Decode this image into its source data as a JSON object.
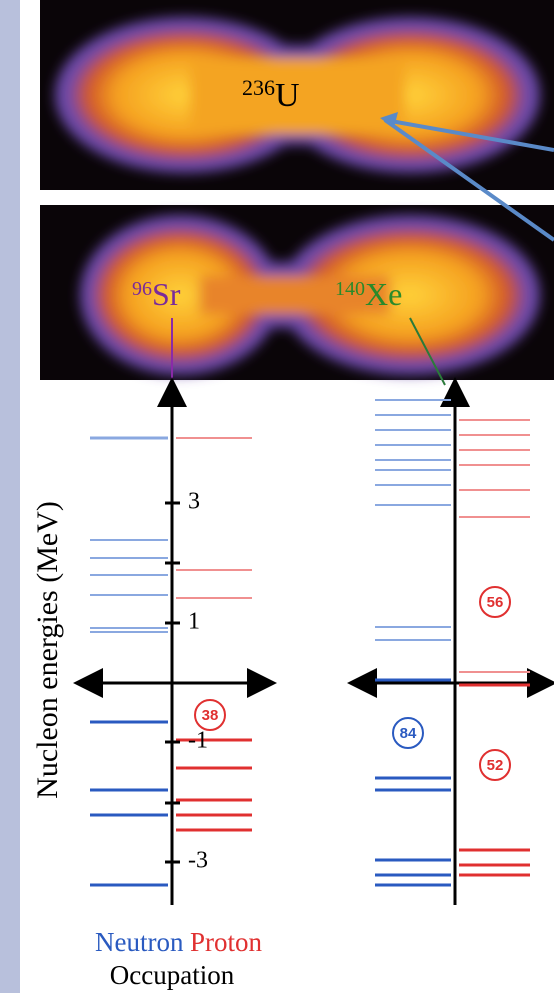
{
  "images": {
    "parent": {
      "mass": "236",
      "symbol": "U"
    },
    "fragments": [
      {
        "mass": "96",
        "symbol": "Sr"
      },
      {
        "mass": "140",
        "symbol": "Xe"
      }
    ]
  },
  "levels": {
    "y_label": "Nucleon energies (MeV)",
    "ticks": [
      "3",
      "1",
      "-1",
      "-3"
    ],
    "left_badges": [
      "38"
    ],
    "right_badges": [
      "56",
      "84",
      "52"
    ],
    "legend": {
      "neutron": "Neutron",
      "proton": "Proton"
    },
    "x_label": "Occupation"
  }
}
